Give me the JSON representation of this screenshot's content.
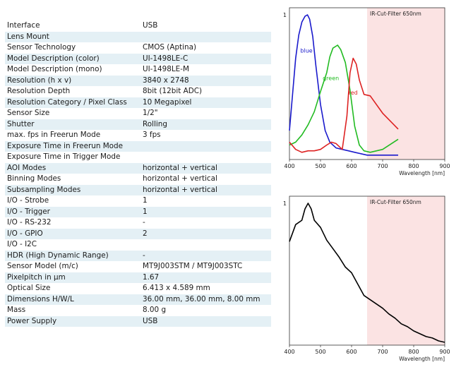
{
  "specs": [
    {
      "label": "Interface",
      "value": "USB"
    },
    {
      "label": "Lens Mount",
      "value": ""
    },
    {
      "label": "Sensor Technology",
      "value": "CMOS (Aptina)"
    },
    {
      "label": "Model Description (color)",
      "value": "UI-1498LE-C"
    },
    {
      "label": "Model Description (mono)",
      "value": "UI-1498LE-M"
    },
    {
      "label": "Resolution (h x v)",
      "value": "3840 x 2748"
    },
    {
      "label": "Resolution Depth",
      "value": "8bit (12bit ADC)"
    },
    {
      "label": "Resolution Category / Pixel Class",
      "value": "10 Megapixel"
    },
    {
      "label": "Sensor Size",
      "value": "1/2\""
    },
    {
      "label": "Shutter",
      "value": "Rolling"
    },
    {
      "label": "max. fps in Freerun Mode",
      "value": "3 fps"
    },
    {
      "label": "Exposure Time in Freerun Mode",
      "value": ""
    },
    {
      "label": "Exposure Time in Trigger Mode",
      "value": ""
    },
    {
      "label": "AOI Modes",
      "value": "horizontal + vertical"
    },
    {
      "label": "Binning Modes",
      "value": "horizontal + vertical"
    },
    {
      "label": "Subsampling Modes",
      "value": "horizontal + vertical"
    },
    {
      "label": "I/O - Strobe",
      "value": "1"
    },
    {
      "label": "I/O - Trigger",
      "value": "1"
    },
    {
      "label": "I/O - RS-232",
      "value": "-"
    },
    {
      "label": "I/O - GPIO",
      "value": "2"
    },
    {
      "label": "I/O - I2C",
      "value": ""
    },
    {
      "label": "HDR (High Dynamic Range)",
      "value": "-"
    },
    {
      "label": "Sensor Model (m/c)",
      "value": "MT9J003STM / MT9J003STC"
    },
    {
      "label": "Pixelpitch in µm",
      "value": "1.67"
    },
    {
      "label": "Optical Size",
      "value": "6.413 x 4.589 mm"
    },
    {
      "label": "Dimensions H/W/L",
      "value": "36.00 mm, 36.00 mm, 8.00 mm"
    },
    {
      "label": "Mass",
      "value": "8.00 g"
    },
    {
      "label": "Power Supply",
      "value": "USB"
    }
  ],
  "colors": {
    "row_alt": "#e4f0f5",
    "ir_region": "#fbe3e3",
    "blue": "#1a1acc",
    "green": "#22bb22",
    "red": "#dd2222",
    "mono": "#000000"
  },
  "chart_data": [
    {
      "type": "line",
      "title": "",
      "xlabel": "Wavelength [nm]",
      "ylabel": "",
      "xlim": [
        400,
        900
      ],
      "ylim": [
        0,
        1
      ],
      "x_ticks": [
        "400",
        "500",
        "600",
        "700",
        "800",
        "900"
      ],
      "y_ticks": [
        "1"
      ],
      "shaded_region": {
        "x_from": 650,
        "x_to": 900,
        "label": "IR-Cut-Filter 650nm"
      },
      "series": [
        {
          "name": "blue",
          "color": "#1a1acc",
          "x": [
            400,
            410,
            420,
            430,
            440,
            450,
            458,
            465,
            475,
            485,
            500,
            515,
            530,
            550,
            570,
            590,
            610,
            630,
            650,
            700,
            750
          ],
          "y": [
            0.2,
            0.45,
            0.7,
            0.86,
            0.95,
            0.99,
            1.0,
            0.97,
            0.85,
            0.65,
            0.38,
            0.2,
            0.12,
            0.08,
            0.07,
            0.06,
            0.05,
            0.04,
            0.03,
            0.03,
            0.03
          ]
        },
        {
          "name": "green",
          "color": "#22bb22",
          "x": [
            400,
            420,
            440,
            460,
            480,
            500,
            520,
            530,
            540,
            555,
            565,
            580,
            595,
            610,
            625,
            640,
            660,
            700,
            750
          ],
          "y": [
            0.1,
            0.12,
            0.17,
            0.24,
            0.33,
            0.47,
            0.6,
            0.71,
            0.77,
            0.79,
            0.76,
            0.67,
            0.48,
            0.23,
            0.1,
            0.06,
            0.05,
            0.07,
            0.14
          ]
        },
        {
          "name": "red",
          "color": "#dd2222",
          "x": [
            400,
            420,
            440,
            460,
            480,
            500,
            520,
            535,
            550,
            570,
            585,
            595,
            605,
            615,
            625,
            640,
            660,
            700,
            750
          ],
          "y": [
            0.12,
            0.07,
            0.05,
            0.06,
            0.06,
            0.07,
            0.1,
            0.12,
            0.11,
            0.07,
            0.3,
            0.6,
            0.7,
            0.66,
            0.55,
            0.45,
            0.44,
            0.32,
            0.21
          ]
        }
      ],
      "series_labels": [
        "blue",
        "green",
        "red"
      ]
    },
    {
      "type": "line",
      "title": "",
      "xlabel": "Wavelength [nm]",
      "ylabel": "",
      "xlim": [
        400,
        900
      ],
      "ylim": [
        0,
        1
      ],
      "x_ticks": [
        "400",
        "500",
        "600",
        "700",
        "800",
        "900"
      ],
      "y_ticks": [
        "1"
      ],
      "shaded_region": {
        "x_from": 650,
        "x_to": 900,
        "label": "IR-Cut-Filter 650nm"
      },
      "series": [
        {
          "name": "",
          "color": "#000000",
          "x": [
            400,
            420,
            440,
            450,
            460,
            470,
            480,
            500,
            520,
            540,
            560,
            580,
            600,
            620,
            640,
            660,
            680,
            700,
            720,
            740,
            760,
            780,
            800,
            820,
            840,
            860,
            880,
            900
          ],
          "y": [
            0.73,
            0.85,
            0.88,
            0.96,
            1.0,
            0.96,
            0.88,
            0.83,
            0.74,
            0.68,
            0.62,
            0.55,
            0.51,
            0.43,
            0.35,
            0.32,
            0.29,
            0.26,
            0.22,
            0.19,
            0.15,
            0.13,
            0.1,
            0.08,
            0.06,
            0.05,
            0.03,
            0.02
          ]
        }
      ]
    }
  ]
}
